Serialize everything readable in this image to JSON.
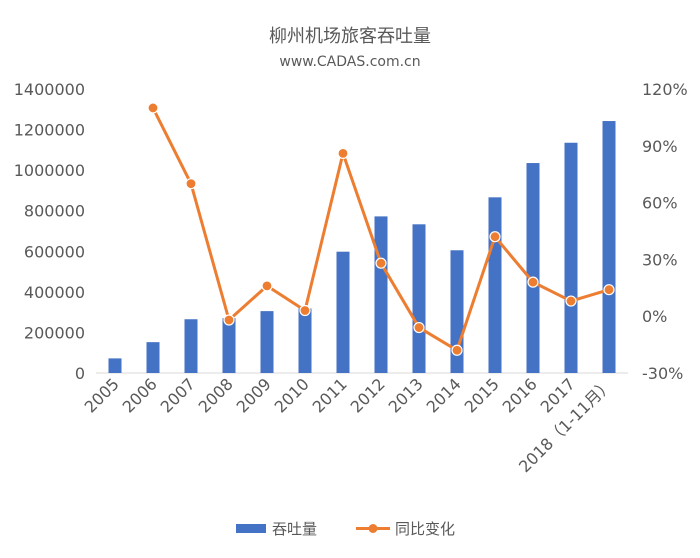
{
  "chart_data": {
    "type": "bar+line",
    "title": "柳州机场旅客吞吐量",
    "subtitle": "www.CADAS.com.cn",
    "categories": [
      "2005",
      "2006",
      "2007",
      "2008",
      "2009",
      "2010",
      "2011",
      "2012",
      "2013",
      "2014",
      "2015",
      "2016",
      "2017",
      "2018（1-11月）"
    ],
    "series": [
      {
        "name": "吞吐量",
        "kind": "bar",
        "axis": "left",
        "color": "#4472c4",
        "values": [
          72000,
          152000,
          265000,
          270000,
          305000,
          318000,
          598000,
          772000,
          733000,
          605000,
          866000,
          1035000,
          1135000,
          1242000
        ]
      },
      {
        "name": "同比变化",
        "kind": "line",
        "axis": "right",
        "color": "#ed7d31",
        "values": [
          null,
          110,
          70,
          -2,
          16,
          3,
          86,
          28,
          -6,
          -18,
          42,
          18,
          8,
          14
        ]
      }
    ],
    "y_left": {
      "min": 0,
      "max": 1400000,
      "ticks": [
        "0",
        "200000",
        "400000",
        "600000",
        "800000",
        "1000000",
        "1200000",
        "1400000"
      ]
    },
    "y_right": {
      "min": -30,
      "max": 120,
      "ticks": [
        "-30%",
        "0%",
        "30%",
        "60%",
        "90%",
        "120%"
      ]
    },
    "legend_position": "bottom",
    "grid": false
  }
}
